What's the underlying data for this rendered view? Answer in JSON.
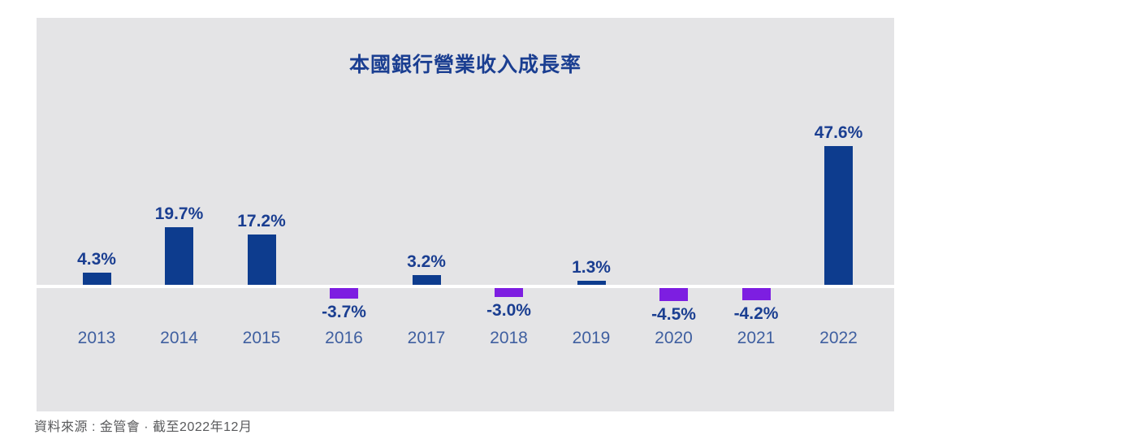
{
  "title": "本國銀行營業收入成長率",
  "source_note": "資料來源 : 金管會 · 截至2022年12月",
  "colors": {
    "panel_background": "#E4E4E6",
    "baseline": "#FFFFFF",
    "positive_bar": "#0D3C8E",
    "negative_bar": "#7D1EE1",
    "title_text": "#1A3E91",
    "value_label_text": "#1A3E91",
    "year_label_text": "#3F5FA0",
    "source_text": "#58595B"
  },
  "chart_data": {
    "type": "bar",
    "title": "本國銀行營業收入成長率",
    "categories": [
      "2013",
      "2014",
      "2015",
      "2016",
      "2017",
      "2018",
      "2019",
      "2020",
      "2021",
      "2022"
    ],
    "values": [
      4.3,
      19.7,
      17.2,
      -3.7,
      3.2,
      -3.0,
      1.3,
      -4.5,
      -4.2,
      47.6
    ],
    "value_labels": [
      "4.3%",
      "19.7%",
      "17.2%",
      "-3.7%",
      "3.2%",
      "-3.0%",
      "1.3%",
      "-4.5%",
      "-4.2%",
      "47.6%"
    ],
    "unit": "%",
    "xlabel": "",
    "ylabel": "",
    "ylim": [
      -10,
      55
    ],
    "grid": false,
    "legend": "none",
    "positive_color": "#0D3C8E",
    "negative_color": "#7D1EE1",
    "baseline_value": 0
  }
}
